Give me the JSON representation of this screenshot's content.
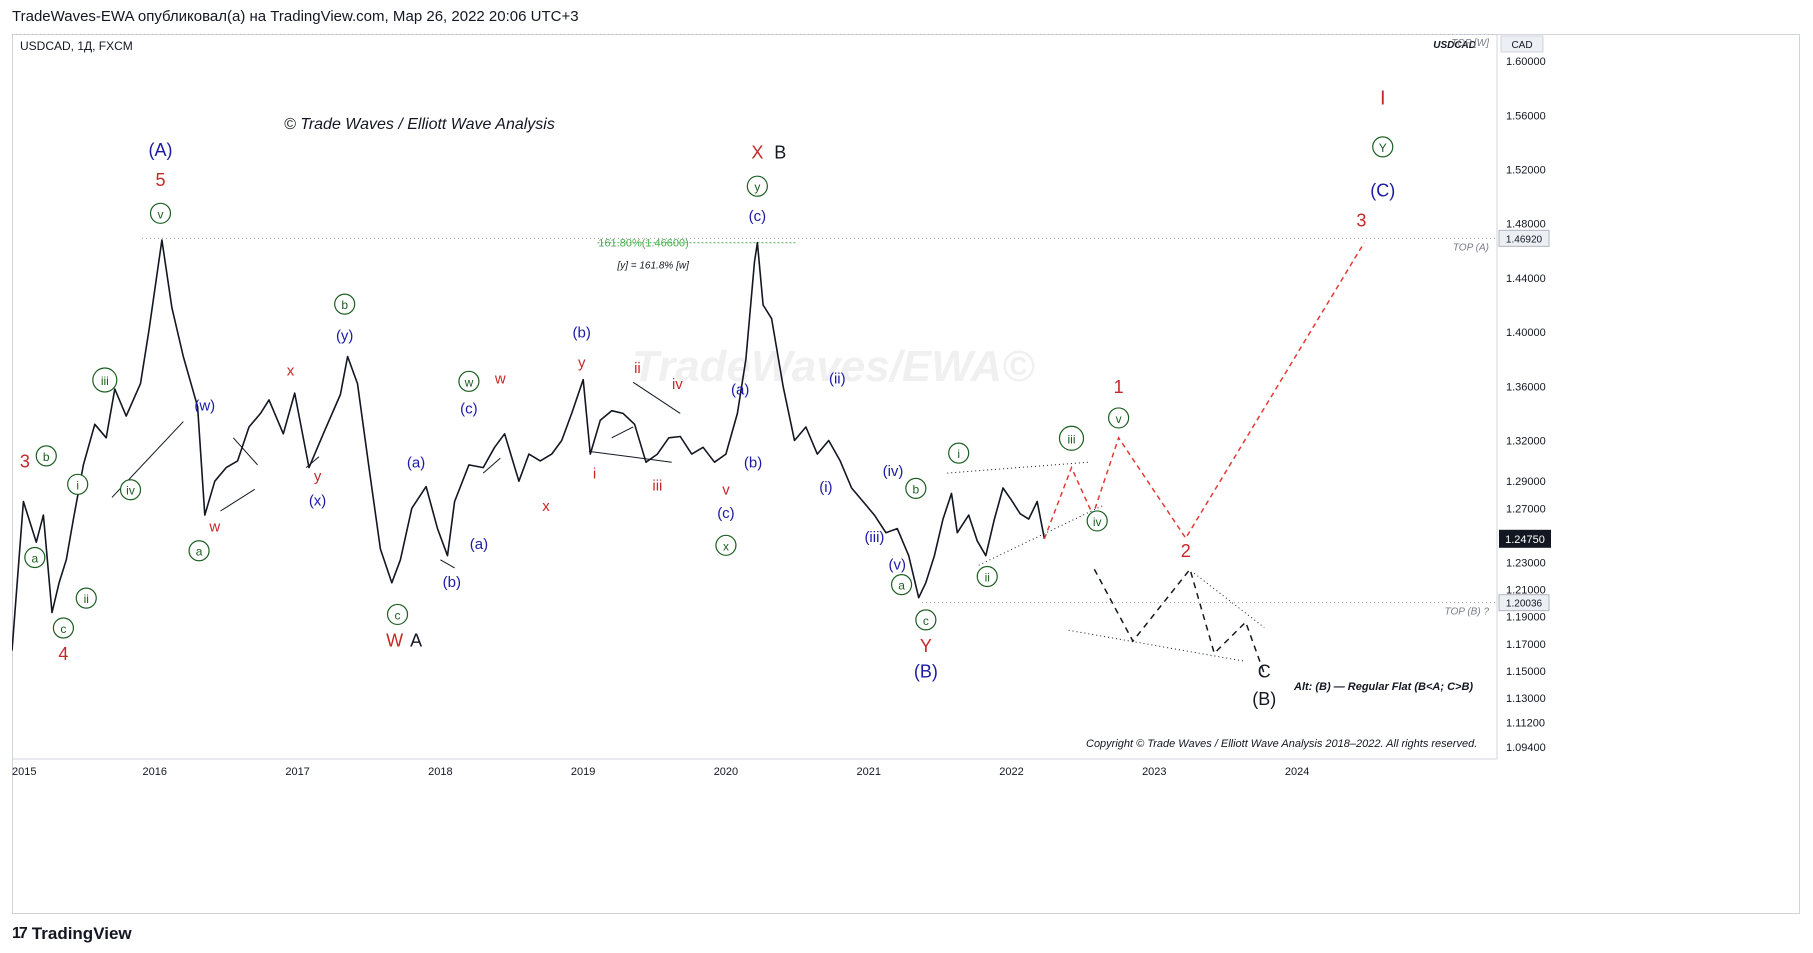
{
  "header": {
    "publish_line": "TradeWaves-EWA опубликовал(а) на TradingView.com, Мар 26, 2022 20:06 UTC+3"
  },
  "footer": {
    "brand": "TradingView"
  },
  "colors": {
    "price": "#131722",
    "green": "#1b5e20",
    "blue": "#1a1aa6",
    "red": "#c62828",
    "dark": "#131722",
    "projection_red": "#e53935",
    "projection_black": "#131722",
    "fib_green": "#4caf50"
  },
  "chart_data": {
    "type": "line",
    "symbol_line": "USDCAD, 1Д, FXCM",
    "price_scale_title": "USDCAD",
    "currency_tag": "CAD",
    "watermark": "TradeWaves/EWA©",
    "copyright_title": "© Trade Waves / Elliott Wave Analysis",
    "copyright_footer": "Copyright © Trade Waves / Elliott Wave Analysis 2018–2022. All rights reserved.",
    "alt_note": "Alt: (B) — Regular Flat (B<A; C>B)",
    "x_axis_labels": [
      "2015",
      "2016",
      "2017",
      "2018",
      "2019",
      "2020",
      "2021",
      "2022",
      "2023",
      "2024"
    ],
    "y_axis_labels": [
      "1.60000",
      "1.56000",
      "1.52000",
      "1.48000",
      "1.44000",
      "1.40000",
      "1.36000",
      "1.32000",
      "1.29000",
      "1.27000",
      "1.23000",
      "1.21000",
      "1.19000",
      "1.17000",
      "1.15000",
      "1.13000",
      "1.11200",
      "1.09400"
    ],
    "ylim": [
      1.085,
      1.62
    ],
    "last_price": "1.24750",
    "levels": [
      {
        "label": "TOP [W]",
        "value": "1.62000",
        "price": 1.62,
        "show_value": false
      },
      {
        "label": "TOP (A)",
        "value": "1.46920",
        "price": 1.4692,
        "show_value": true
      },
      {
        "label": "TOP (B) ?",
        "value": "1.20036",
        "price": 1.20036,
        "show_value": true
      }
    ],
    "fib_label": "161.80%(1.46600)",
    "fib_note": "[y] = 161.8% [w]",
    "price_series": {
      "x": [
        2015.0,
        2015.08,
        2015.17,
        2015.22,
        2015.28,
        2015.33,
        2015.38,
        2015.43,
        2015.5,
        2015.58,
        2015.66,
        2015.72,
        2015.8,
        2015.9,
        2015.96,
        2016.05,
        2016.12,
        2016.2,
        2016.3,
        2016.35,
        2016.42,
        2016.5,
        2016.58,
        2016.66,
        2016.74,
        2016.8,
        2016.9,
        2016.98,
        2017.08,
        2017.18,
        2017.3,
        2017.35,
        2017.42,
        2017.5,
        2017.58,
        2017.66,
        2017.72,
        2017.8,
        2017.9,
        2017.98,
        2018.05,
        2018.1,
        2018.2,
        2018.3,
        2018.38,
        2018.45,
        2018.55,
        2018.62,
        2018.7,
        2018.78,
        2018.85,
        2018.92,
        2019.0,
        2019.05,
        2019.12,
        2019.2,
        2019.28,
        2019.36,
        2019.44,
        2019.52,
        2019.6,
        2019.68,
        2019.76,
        2019.84,
        2019.92,
        2020.0,
        2020.08,
        2020.14,
        2020.2,
        2020.22,
        2020.26,
        2020.32,
        2020.4,
        2020.48,
        2020.56,
        2020.64,
        2020.72,
        2020.8,
        2020.88,
        2020.96,
        2021.04,
        2021.12,
        2021.2,
        2021.28,
        2021.35,
        2021.4,
        2021.46,
        2021.52,
        2021.58,
        2021.62,
        2021.7,
        2021.76,
        2021.82,
        2021.88,
        2021.94,
        2022.0,
        2022.06,
        2022.12,
        2022.18,
        2022.23
      ],
      "y": [
        1.165,
        1.275,
        1.245,
        1.265,
        1.193,
        1.215,
        1.232,
        1.262,
        1.302,
        1.332,
        1.322,
        1.358,
        1.338,
        1.362,
        1.402,
        1.468,
        1.418,
        1.382,
        1.345,
        1.265,
        1.29,
        1.3,
        1.305,
        1.33,
        1.34,
        1.35,
        1.325,
        1.355,
        1.3,
        1.325,
        1.354,
        1.382,
        1.362,
        1.3,
        1.24,
        1.215,
        1.232,
        1.27,
        1.286,
        1.255,
        1.235,
        1.275,
        1.302,
        1.3,
        1.315,
        1.325,
        1.29,
        1.31,
        1.305,
        1.31,
        1.32,
        1.34,
        1.365,
        1.31,
        1.335,
        1.342,
        1.34,
        1.332,
        1.304,
        1.31,
        1.322,
        1.323,
        1.31,
        1.315,
        1.304,
        1.31,
        1.34,
        1.38,
        1.452,
        1.466,
        1.42,
        1.41,
        1.36,
        1.32,
        1.33,
        1.31,
        1.32,
        1.305,
        1.285,
        1.275,
        1.265,
        1.252,
        1.255,
        1.235,
        1.204,
        1.215,
        1.235,
        1.262,
        1.281,
        1.252,
        1.265,
        1.246,
        1.235,
        1.262,
        1.285,
        1.276,
        1.266,
        1.262,
        1.275,
        1.2475
      ]
    },
    "wave_labels": [
      {
        "text": "3",
        "x": 2015.09,
        "y": 1.3,
        "color": "red",
        "circled": false,
        "size": 18
      },
      {
        "text": "b",
        "x": 2015.24,
        "y": 1.305,
        "color": "green",
        "circled": true
      },
      {
        "text": "i",
        "x": 2015.46,
        "y": 1.284,
        "color": "green",
        "circled": true
      },
      {
        "text": "a",
        "x": 2015.16,
        "y": 1.23,
        "color": "green",
        "circled": true
      },
      {
        "text": "ii",
        "x": 2015.52,
        "y": 1.2,
        "color": "green",
        "circled": true
      },
      {
        "text": "c",
        "x": 2015.36,
        "y": 1.178,
        "color": "green",
        "circled": true
      },
      {
        "text": "4",
        "x": 2015.36,
        "y": 1.158,
        "color": "red",
        "circled": false,
        "size": 18
      },
      {
        "text": "iii",
        "x": 2015.65,
        "y": 1.361,
        "color": "green",
        "circled": true
      },
      {
        "text": "iv",
        "x": 2015.83,
        "y": 1.28,
        "color": "green",
        "circled": true
      },
      {
        "text": "(A)",
        "x": 2016.04,
        "y": 1.53,
        "color": "blue",
        "circled": false,
        "size": 18
      },
      {
        "text": "5",
        "x": 2016.04,
        "y": 1.508,
        "color": "red",
        "circled": false,
        "size": 18
      },
      {
        "text": "v",
        "x": 2016.04,
        "y": 1.484,
        "color": "green",
        "circled": true
      },
      {
        "text": "(w)",
        "x": 2016.35,
        "y": 1.342,
        "color": "blue",
        "circled": false
      },
      {
        "text": "w",
        "x": 2016.42,
        "y": 1.253,
        "color": "red",
        "circled": false
      },
      {
        "text": "a",
        "x": 2016.31,
        "y": 1.235,
        "color": "green",
        "circled": true
      },
      {
        "text": "x",
        "x": 2016.95,
        "y": 1.368,
        "color": "red",
        "circled": false
      },
      {
        "text": "y",
        "x": 2017.14,
        "y": 1.29,
        "color": "red",
        "circled": false
      },
      {
        "text": "(x)",
        "x": 2017.14,
        "y": 1.272,
        "color": "blue",
        "circled": false
      },
      {
        "text": "b",
        "x": 2017.33,
        "y": 1.417,
        "color": "green",
        "circled": true
      },
      {
        "text": "(y)",
        "x": 2017.33,
        "y": 1.394,
        "color": "blue",
        "circled": false
      },
      {
        "text": "c",
        "x": 2017.7,
        "y": 1.188,
        "color": "green",
        "circled": true
      },
      {
        "text": "W",
        "x": 2017.68,
        "y": 1.168,
        "color": "red",
        "circled": false,
        "size": 18
      },
      {
        "text": "A",
        "x": 2017.83,
        "y": 1.168,
        "color": "dark",
        "circled": false,
        "size": 18
      },
      {
        "text": "(a)",
        "x": 2017.83,
        "y": 1.3,
        "color": "blue",
        "circled": false
      },
      {
        "text": "(b)",
        "x": 2018.08,
        "y": 1.212,
        "color": "blue",
        "circled": false
      },
      {
        "text": "w",
        "x": 2018.42,
        "y": 1.362,
        "color": "red",
        "circled": false
      },
      {
        "text": "w",
        "x": 2018.2,
        "y": 1.36,
        "color": "green",
        "circled": true
      },
      {
        "text": "(c)",
        "x": 2018.2,
        "y": 1.34,
        "color": "blue",
        "circled": false
      },
      {
        "text": "(a)",
        "x": 2018.27,
        "y": 1.24,
        "color": "blue",
        "circled": false
      },
      {
        "text": "x",
        "x": 2018.74,
        "y": 1.268,
        "color": "red",
        "circled": false
      },
      {
        "text": "(b)",
        "x": 2018.99,
        "y": 1.396,
        "color": "blue",
        "circled": false
      },
      {
        "text": "y",
        "x": 2018.99,
        "y": 1.374,
        "color": "red",
        "circled": false
      },
      {
        "text": "i",
        "x": 2019.08,
        "y": 1.292,
        "color": "red",
        "circled": false
      },
      {
        "text": "ii",
        "x": 2019.38,
        "y": 1.37,
        "color": "red",
        "circled": false
      },
      {
        "text": "iii",
        "x": 2019.52,
        "y": 1.283,
        "color": "red",
        "circled": false
      },
      {
        "text": "iv",
        "x": 2019.66,
        "y": 1.358,
        "color": "red",
        "circled": false
      },
      {
        "text": "(a)",
        "x": 2020.1,
        "y": 1.354,
        "color": "blue",
        "circled": false
      },
      {
        "text": "(b)",
        "x": 2020.19,
        "y": 1.3,
        "color": "blue",
        "circled": false
      },
      {
        "text": "v",
        "x": 2020.0,
        "y": 1.28,
        "color": "red",
        "circled": false
      },
      {
        "text": "(c)",
        "x": 2020.0,
        "y": 1.263,
        "color": "blue",
        "circled": false
      },
      {
        "text": "x",
        "x": 2020.0,
        "y": 1.239,
        "color": "green",
        "circled": true
      },
      {
        "text": "X",
        "x": 2020.22,
        "y": 1.528,
        "color": "red",
        "circled": false,
        "size": 18
      },
      {
        "text": "B",
        "x": 2020.38,
        "y": 1.528,
        "color": "dark",
        "circled": false,
        "size": 18
      },
      {
        "text": "y",
        "x": 2020.22,
        "y": 1.504,
        "color": "green",
        "circled": true
      },
      {
        "text": "(c)",
        "x": 2020.22,
        "y": 1.482,
        "color": "blue",
        "circled": false
      },
      {
        "text": "(ii)",
        "x": 2020.78,
        "y": 1.362,
        "color": "blue",
        "circled": false
      },
      {
        "text": "(i)",
        "x": 2020.7,
        "y": 1.282,
        "color": "blue",
        "circled": false
      },
      {
        "text": "(iv)",
        "x": 2021.17,
        "y": 1.294,
        "color": "blue",
        "circled": false
      },
      {
        "text": "b",
        "x": 2021.33,
        "y": 1.281,
        "color": "green",
        "circled": true
      },
      {
        "text": "(iii)",
        "x": 2021.04,
        "y": 1.245,
        "color": "blue",
        "circled": false
      },
      {
        "text": "(v)",
        "x": 2021.2,
        "y": 1.225,
        "color": "blue",
        "circled": false
      },
      {
        "text": "a",
        "x": 2021.23,
        "y": 1.21,
        "color": "green",
        "circled": true
      },
      {
        "text": "c",
        "x": 2021.4,
        "y": 1.184,
        "color": "green",
        "circled": true
      },
      {
        "text": "Y",
        "x": 2021.4,
        "y": 1.164,
        "color": "red",
        "circled": false,
        "size": 18
      },
      {
        "text": "(B)",
        "x": 2021.4,
        "y": 1.145,
        "color": "blue",
        "circled": false,
        "size": 18
      },
      {
        "text": "i",
        "x": 2021.63,
        "y": 1.307,
        "color": "green",
        "circled": true
      },
      {
        "text": "ii",
        "x": 2021.83,
        "y": 1.216,
        "color": "green",
        "circled": true
      },
      {
        "text": "iii",
        "x": 2022.42,
        "y": 1.318,
        "color": "green",
        "circled": true
      },
      {
        "text": "iv",
        "x": 2022.6,
        "y": 1.257,
        "color": "green",
        "circled": true
      },
      {
        "text": "1",
        "x": 2022.75,
        "y": 1.355,
        "color": "red",
        "circled": false,
        "size": 18
      },
      {
        "text": "v",
        "x": 2022.75,
        "y": 1.333,
        "color": "green",
        "circled": true
      },
      {
        "text": "2",
        "x": 2023.22,
        "y": 1.234,
        "color": "red",
        "circled": false,
        "size": 18
      },
      {
        "text": "3",
        "x": 2024.45,
        "y": 1.478,
        "color": "red",
        "circled": false,
        "size": 18
      },
      {
        "text": "I",
        "x": 2024.6,
        "y": 1.568,
        "color": "red",
        "circled": false,
        "size": 20
      },
      {
        "text": "Y",
        "x": 2024.6,
        "y": 1.533,
        "color": "green",
        "circled": true
      },
      {
        "text": "(C)",
        "x": 2024.6,
        "y": 1.5,
        "color": "blue",
        "circled": false,
        "size": 18
      },
      {
        "text": "C",
        "x": 2023.77,
        "y": 1.145,
        "color": "dark",
        "circled": false,
        "size": 18
      },
      {
        "text": "(B)",
        "x": 2023.77,
        "y": 1.125,
        "color": "dark",
        "circled": false,
        "size": 18
      }
    ],
    "projection_red": {
      "x": [
        2022.23,
        2022.42,
        2022.57,
        2022.75,
        2023.22,
        2024.47
      ],
      "y": [
        1.2475,
        1.3,
        1.265,
        1.322,
        1.248,
        1.466
      ]
    },
    "projection_black": {
      "x": [
        2022.58,
        2022.85,
        2023.25,
        2023.42,
        2023.64,
        2023.77
      ],
      "y": [
        1.225,
        1.172,
        1.225,
        1.163,
        1.186,
        1.148
      ]
    },
    "trendlines": [
      {
        "x": [
          2015.7,
          2016.2
        ],
        "y": [
          1.278,
          1.334
        ]
      },
      {
        "x": [
          2016.46,
          2016.7
        ],
        "y": [
          1.268,
          1.284
        ]
      },
      {
        "x": [
          2016.55,
          2016.72
        ],
        "y": [
          1.322,
          1.302
        ]
      },
      {
        "x": [
          2017.06,
          2017.15
        ],
        "y": [
          1.3,
          1.308
        ]
      },
      {
        "x": [
          2018.0,
          2018.1
        ],
        "y": [
          1.232,
          1.226
        ]
      },
      {
        "x": [
          2018.3,
          2018.42
        ],
        "y": [
          1.296,
          1.307
        ]
      },
      {
        "x": [
          2019.04,
          2019.62
        ],
        "y": [
          1.312,
          1.304
        ]
      },
      {
        "x": [
          2019.35,
          2019.68
        ],
        "y": [
          1.363,
          1.34
        ]
      },
      {
        "x": [
          2019.2,
          2019.35
        ],
        "y": [
          1.322,
          1.33
        ]
      }
    ],
    "triangle_dotted": [
      {
        "x": [
          2021.55,
          2022.54
        ],
        "y": [
          1.296,
          1.304
        ]
      },
      {
        "x": [
          2021.77,
          2022.64
        ],
        "y": [
          1.228,
          1.272
        ]
      },
      {
        "x": [
          2022.4,
          2023.64
        ],
        "y": [
          1.18,
          1.157
        ]
      },
      {
        "x": [
          2023.28,
          2023.77
        ],
        "y": [
          1.222,
          1.182
        ]
      }
    ]
  }
}
